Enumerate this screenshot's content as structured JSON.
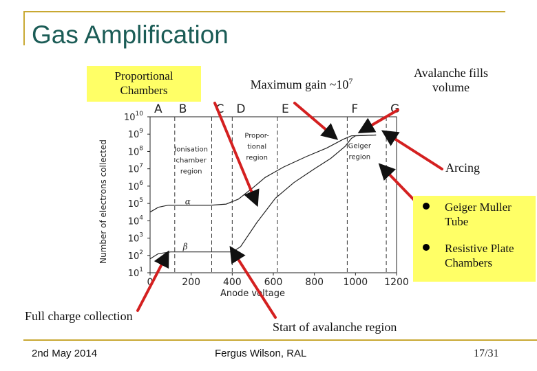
{
  "slide": {
    "title": "Gas Amplification",
    "accent_color": "#c8a832",
    "title_color": "#1b5c56",
    "highlight_color": "#ffff66",
    "arrow_color": "#d42020"
  },
  "annotations": {
    "proportional_line1": "Proportional",
    "proportional_line2": "Chambers",
    "max_gain_text": "Maximum gain ~10",
    "max_gain_exp": "7",
    "avalanche_line1": "Avalanche fills",
    "avalanche_line2": "volume",
    "arcing": "Arcing",
    "full_charge": "Full charge collection",
    "start_avalanche": "Start of avalanche region"
  },
  "bullets": [
    {
      "line1": "Geiger Muller",
      "line2": "Tube"
    },
    {
      "line1": "Resistive Plate",
      "line2": "Chambers"
    }
  ],
  "footer": {
    "date": "2nd May 2014",
    "author": "Fergus Wilson, RAL",
    "page": "17/31"
  },
  "chart_data": {
    "type": "line",
    "title": "",
    "xlabel": "Anode voltage",
    "ylabel": "Number of electrons collected",
    "xlim": [
      0,
      1200
    ],
    "ylim_log10": [
      1,
      10
    ],
    "x_ticks": [
      "0",
      "200",
      "400",
      "600",
      "800",
      "1000",
      "1200"
    ],
    "y_ticks": [
      {
        "base": "10",
        "exp": "1",
        "v": 1
      },
      {
        "base": "10",
        "exp": "2",
        "v": 2
      },
      {
        "base": "10",
        "exp": "3",
        "v": 3
      },
      {
        "base": "10",
        "exp": "4",
        "v": 4
      },
      {
        "base": "10",
        "exp": "5",
        "v": 5
      },
      {
        "base": "10",
        "exp": "6",
        "v": 6
      },
      {
        "base": "10",
        "exp": "7",
        "v": 7
      },
      {
        "base": "10",
        "exp": "8",
        "v": 8
      },
      {
        "base": "10",
        "exp": "9",
        "v": 9
      },
      {
        "base": "10",
        "exp": "10",
        "v": 10
      }
    ],
    "region_lines": [
      {
        "label": "A",
        "x": 0
      },
      {
        "label": "B",
        "x": 120
      },
      {
        "label": "C",
        "x": 300
      },
      {
        "label": "D",
        "x": 400
      },
      {
        "label": "E",
        "x": 620
      },
      {
        "label": "F",
        "x": 960
      },
      {
        "label": "G",
        "x": 1150
      }
    ],
    "region_texts": [
      {
        "lines": [
          "Ionisation",
          "chamber",
          "region"
        ],
        "x": 200,
        "y": 8.0
      },
      {
        "lines": [
          "Propor-",
          "tional",
          "region"
        ],
        "x": 520,
        "y": 8.8
      },
      {
        "lines": [
          "Geiger",
          "region"
        ],
        "x": 1020,
        "y": 8.2
      }
    ],
    "series": [
      {
        "name": "α",
        "label_at": {
          "x": 170,
          "y": 4.95
        },
        "points": [
          [
            0,
            4.5
          ],
          [
            40,
            4.78
          ],
          [
            90,
            4.9
          ],
          [
            300,
            4.9
          ],
          [
            370,
            4.96
          ],
          [
            430,
            5.25
          ],
          [
            500,
            5.9
          ],
          [
            560,
            6.5
          ],
          [
            650,
            7.1
          ],
          [
            760,
            7.7
          ],
          [
            860,
            8.2
          ],
          [
            940,
            8.7
          ],
          [
            980,
            8.9
          ],
          [
            1100,
            8.95
          ]
        ]
      },
      {
        "name": "β",
        "label_at": {
          "x": 160,
          "y": 2.35
        },
        "points": [
          [
            0,
            1.8
          ],
          [
            40,
            2.1
          ],
          [
            100,
            2.2
          ],
          [
            400,
            2.2
          ],
          [
            440,
            2.5
          ],
          [
            520,
            3.9
          ],
          [
            610,
            5.3
          ],
          [
            700,
            6.2
          ],
          [
            800,
            7.0
          ],
          [
            880,
            7.6
          ],
          [
            950,
            8.3
          ],
          [
            980,
            8.75
          ],
          [
            1000,
            8.9
          ],
          [
            1100,
            8.95
          ]
        ]
      }
    ]
  }
}
